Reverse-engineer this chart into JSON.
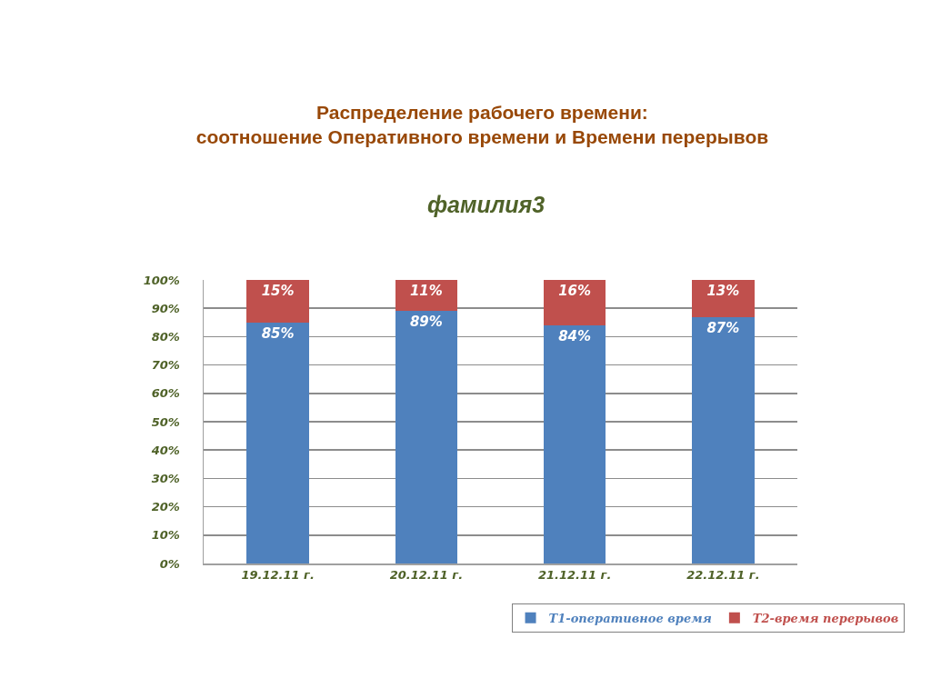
{
  "chart_data": {
    "type": "bar",
    "title": "Распределение рабочего времени:\nсоотношение Оперативного времени и Времени перерывов",
    "subtitle": "фамилия3",
    "categories": [
      "19.12.11 г.",
      "20.12.11 г.",
      "21.12.11 г.",
      "22.12.11 г."
    ],
    "series": [
      {
        "name": "Т1-оперативное время",
        "color": "#4f81bd",
        "values": [
          85,
          89,
          84,
          87
        ],
        "value_labels": [
          "85%",
          "89%",
          "84%",
          "87%"
        ]
      },
      {
        "name": "Т2-время перерывов",
        "color": "#c0504d",
        "values": [
          15,
          11,
          16,
          13
        ],
        "value_labels": [
          "15%",
          "11%",
          "16%",
          "13%"
        ]
      }
    ],
    "stacked": true,
    "ylim": [
      0,
      100
    ],
    "yticks": [
      {
        "value": 0,
        "label": "0%"
      },
      {
        "value": 10,
        "label": "10%"
      },
      {
        "value": 20,
        "label": "20%"
      },
      {
        "value": 30,
        "label": "30%"
      },
      {
        "value": 40,
        "label": "40%"
      },
      {
        "value": 50,
        "label": "50%"
      },
      {
        "value": 60,
        "label": "60%"
      },
      {
        "value": 70,
        "label": "70%"
      },
      {
        "value": 80,
        "label": "80%"
      },
      {
        "value": 90,
        "label": "90%"
      },
      {
        "value": 100,
        "label": "100%"
      }
    ],
    "grid": "y",
    "legend": "bottom right"
  }
}
